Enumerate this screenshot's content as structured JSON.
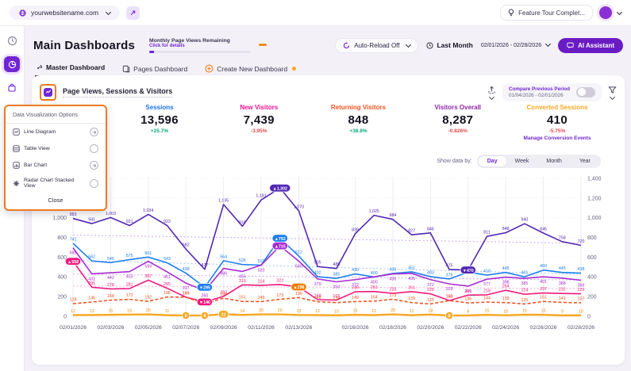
{
  "topbar": {
    "site": "yourwebsitename.com",
    "feature_tour": "Feature Tour Complet..."
  },
  "header": {
    "title": "Main Dashboards",
    "monthly_label": "Monthly Page Views Remaining",
    "monthly_link": "Click for details",
    "auto_reload": "Auto-Reload Off",
    "period": "Last Month",
    "date_range": "02/01/2026 - 02/28/2026",
    "ai_assistant": "AI Assistant"
  },
  "tabs": [
    {
      "label": "Master Dashboard"
    },
    {
      "label": "Pages Dashboard"
    },
    {
      "label": "Create New Dashboard"
    }
  ],
  "panel": {
    "title": "Page Views, Sessions & Visitors",
    "compare_label": "Compare Previous Period",
    "compare_range": "01/04/2026 - 02/01/2026",
    "show_data_by": "Show data by:",
    "granularity": [
      "Day",
      "Week",
      "Month",
      "Year"
    ],
    "granularity_selected": "Day"
  },
  "metrics": [
    {
      "label": "Sessions",
      "value": "13,596",
      "change": "+25.7%",
      "color": "#1a73e8",
      "change_color": "#0ca678"
    },
    {
      "label": "New Visitors",
      "value": "7,439",
      "change": "-3.95%",
      "color": "#f0128f",
      "change_color": "#e5484d"
    },
    {
      "label": "Returning Visitors",
      "value": "848",
      "change": "+38.8%",
      "color": "#f4511e",
      "change_color": "#0ca678"
    },
    {
      "label": "Visitors Overall",
      "value": "8,287",
      "change": "-0.826%",
      "color": "#8e24aa",
      "change_color": "#e5484d"
    },
    {
      "label": "Converted Sessions",
      "value": "410",
      "change": "-5.75%",
      "color": "#f9a825",
      "change_color": "#e5484d",
      "link": "Manage Conversion Events"
    }
  ],
  "popup": {
    "title": "Data Visualization Options",
    "options": [
      {
        "label": "Line Diagram",
        "icon": "line-chart-icon",
        "trailing": "arrow"
      },
      {
        "label": "Table View",
        "icon": "table-icon",
        "trailing": "radio"
      },
      {
        "label": "Bar Chart",
        "icon": "bar-chart-icon",
        "trailing": "arrow"
      },
      {
        "label": "Radar Chart Stacked View",
        "icon": "radar-chart-icon",
        "trailing": "radio"
      }
    ],
    "close": "Close"
  },
  "chart_data": {
    "type": "line",
    "n_points": 28,
    "ylim": [
      0,
      1400
    ],
    "yticks": [
      0,
      200,
      400,
      600,
      800,
      1000,
      1200,
      1400
    ],
    "x_tick_indices": [
      0,
      2,
      4,
      6,
      8,
      10,
      12,
      15,
      17,
      19,
      21,
      23,
      25,
      27
    ],
    "x_tick_labels": [
      "02/01/2026",
      "02/03/2026",
      "02/05/2026",
      "02/07/2026",
      "02/09/2026",
      "02/11/2026",
      "02/13/2026",
      "02/16/2026",
      "02/18/2026",
      "02/20/2026",
      "02/22/2026",
      "02/24/2026",
      "02/26/2026",
      "02/28/2026"
    ],
    "legend_position": "none",
    "grid": true,
    "series": [
      {
        "name": "Page Views",
        "color": "#5228b4",
        "values": [
          993,
          941,
          1003,
          921,
          1034,
          922,
          682,
          477,
          1135,
          914,
          1181,
          1302,
          1070,
          505,
          485,
          838,
          1025,
          984,
          827,
          846,
          475,
          470,
          811,
          848,
          940,
          845,
          758,
          720
        ],
        "badges": [
          {
            "i": 11,
            "label": "▲1,302"
          },
          {
            "i": 21,
            "label": "▼470"
          }
        ]
      },
      {
        "name": "Sessions",
        "color": "#1d7ff0",
        "values": [
          741,
          562,
          545,
          575,
          601,
          543,
          438,
          295,
          564,
          526,
          519,
          792,
          612,
          402,
          385,
          430,
          400,
          435,
          451,
          403,
          379,
          449,
          418,
          445,
          401,
          469,
          445,
          438
        ],
        "badges": [
          {
            "i": 7,
            "label": "▼295"
          },
          {
            "i": 11,
            "label": "▲792"
          }
        ]
      },
      {
        "name": "Visitors Overall",
        "color": "#a62ccf",
        "labels_below": true,
        "values": [
          695,
          431,
          442,
          453,
          559,
          451,
          337,
          260,
          486,
          455,
          520,
          715,
          560,
          379,
          350,
          372,
          400,
          430,
          435,
          372,
          329,
          306,
          377,
          398,
          385,
          401,
          388,
          366
        ],
        "badges": [
          {
            "i": 11,
            "label": "▲715"
          }
        ]
      },
      {
        "name": "New Visitors",
        "color": "#ef1a7e",
        "values": [
          558,
          295,
          278,
          281,
          367,
          285,
          194,
          146,
          202,
          319,
          314,
          322,
          298,
          169,
          165,
          249,
          252,
          233,
          251,
          228,
          160,
          215,
          218,
          264,
          224,
          237,
          232,
          229
        ],
        "badges": [
          {
            "i": 0,
            "label": "▲558"
          },
          {
            "i": 7,
            "label": "▼146"
          },
          {
            "i": 12,
            "label": "▲298",
            "color": "#f57c00"
          }
        ]
      },
      {
        "name": "Returning Visitors",
        "color": "#f4511e",
        "dashed": true,
        "values": [
          128,
          145,
          164,
          172,
          152,
          196,
          194,
          129,
          184,
          151,
          149,
          173,
          190,
          148,
          139,
          149,
          154,
          173,
          139,
          125,
          160,
          136,
          144,
          139,
          125,
          151,
          141,
          137
        ],
        "badges": []
      },
      {
        "name": "Converted Sessions",
        "color": "#f9a825",
        "thick": true,
        "values": [
          12,
          13,
          15,
          18,
          20,
          11,
          8,
          8,
          22,
          14,
          20,
          20,
          13,
          12,
          10,
          15,
          12,
          20,
          11,
          18,
          8,
          9,
          15,
          10,
          16,
          15,
          9,
          10
        ],
        "badges": [
          {
            "i": 6,
            "label": "8"
          },
          {
            "i": 7,
            "label": "8"
          },
          {
            "i": 8,
            "label": "22"
          },
          {
            "i": 20,
            "label": "8"
          }
        ]
      }
    ],
    "trend_lines": [
      {
        "name": "Page Views previous period",
        "color": "#c9a9ee",
        "from": 825,
        "to": 742
      },
      {
        "name": "Sessions previous period",
        "color": "#9ec9f7",
        "from": 568,
        "to": 428
      },
      {
        "name": "Visitors Overall previous period",
        "color": "#d7a6e8",
        "from": 428,
        "to": 368
      },
      {
        "name": "New Visitors previous period",
        "color": "#f7b3d2",
        "from": 308,
        "to": 282
      }
    ]
  }
}
